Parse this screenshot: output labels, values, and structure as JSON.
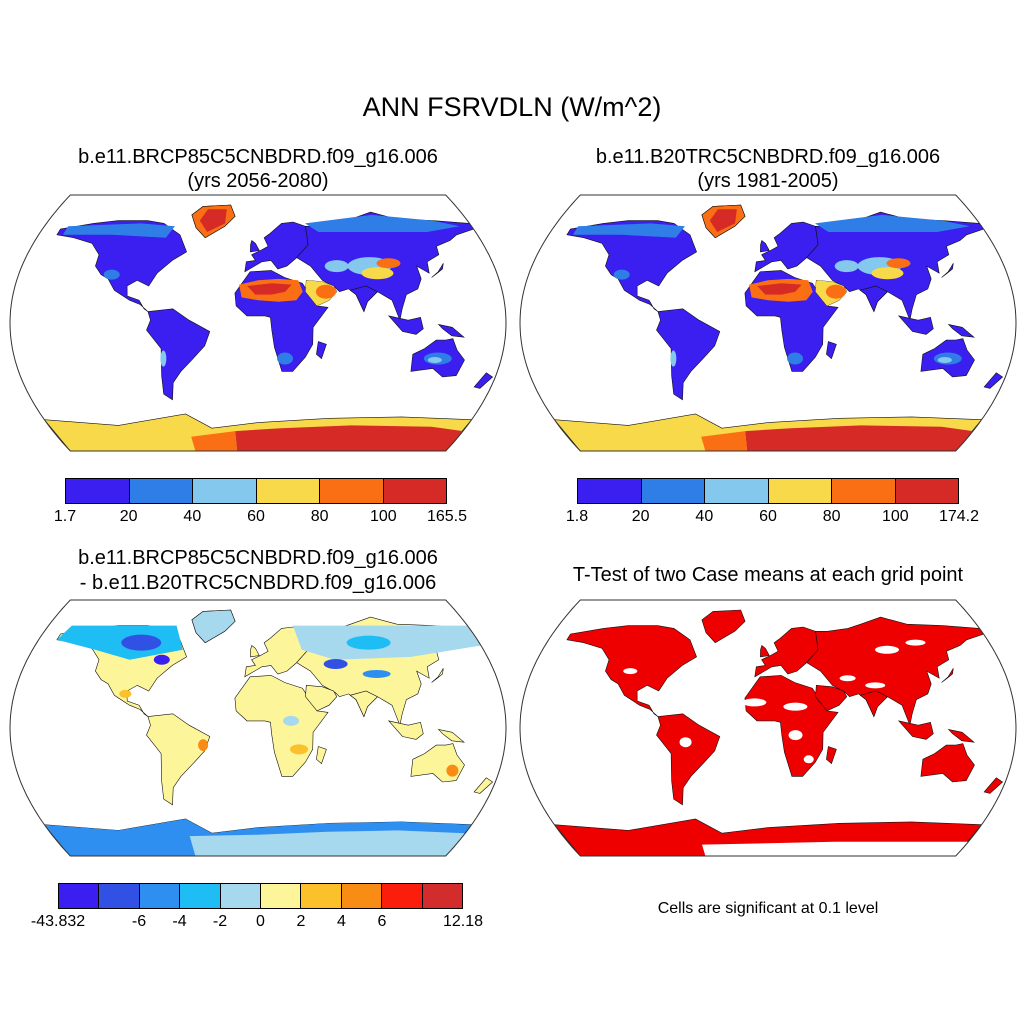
{
  "title": "ANN FSRVDLN (W/m^2)",
  "panels": [
    {
      "id": "case",
      "title_line1": "b.e11.BRCP85C5CNBDRD.f09_g16.006",
      "title_line2": "(yrs 2056-2080)",
      "colorbar": {
        "colors": [
          "#3b1ef0",
          "#2f7de6",
          "#84c8ee",
          "#f8d94a",
          "#fb6f14",
          "#d62a26"
        ],
        "labels": [
          "1.7",
          "20",
          "40",
          "60",
          "80",
          "100",
          "165.5"
        ]
      }
    },
    {
      "id": "control",
      "title_line1": "b.e11.B20TRC5CNBDRD.f09_g16.006",
      "title_line2": "(yrs 1981-2005)",
      "colorbar": {
        "colors": [
          "#3b1ef0",
          "#2f7de6",
          "#84c8ee",
          "#f8d94a",
          "#fb6f14",
          "#d62a26"
        ],
        "labels": [
          "1.8",
          "20",
          "40",
          "60",
          "80",
          "100",
          "174.2"
        ]
      }
    },
    {
      "id": "difference",
      "title_line1": "b.e11.BRCP85C5CNBDRD.f09_g16.006",
      "title_line2": "- b.e11.B20TRC5CNBDRD.f09_g16.006",
      "colorbar": {
        "colors": [
          "#3b1ef0",
          "#3051e4",
          "#2f8ff0",
          "#1ebef4",
          "#a6d8ee",
          "#fdf59a",
          "#fbc02a",
          "#f88c14",
          "#fc1e0c",
          "#d22c2c"
        ],
        "labels": [
          "-43.832",
          "-6",
          "-4",
          "-2",
          "0",
          "2",
          "4",
          "6",
          "12.18"
        ]
      }
    },
    {
      "id": "ttest",
      "title_line1": "T-Test of two Case means at each grid point",
      "note": "Cells are significant at 0.1 level",
      "fill_color": "#ee0000"
    }
  ],
  "colors": {
    "land_low": "#3b1ef0",
    "desert_high": "#fb6f14",
    "antarctica_high": "#d62a26",
    "map_outline": "#333333",
    "significance": "#ee0000"
  }
}
